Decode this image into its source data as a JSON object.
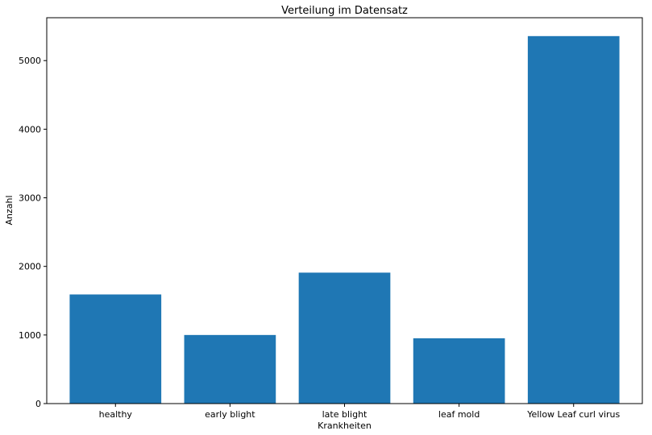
{
  "chart_data": {
    "type": "bar",
    "title": "Verteilung im Datensatz",
    "xlabel": "Krankheiten",
    "ylabel": "Anzahl",
    "categories": [
      "healthy",
      "early blight",
      "late blight",
      "leaf mold",
      "Yellow Leaf curl virus"
    ],
    "values": [
      1591,
      1000,
      1909,
      952,
      5357
    ],
    "ylim": [
      0,
      5625
    ],
    "yticks": [
      0,
      1000,
      2000,
      3000,
      4000,
      5000
    ],
    "bar_color": "#1f77b4",
    "grid": false,
    "legend": "none"
  }
}
